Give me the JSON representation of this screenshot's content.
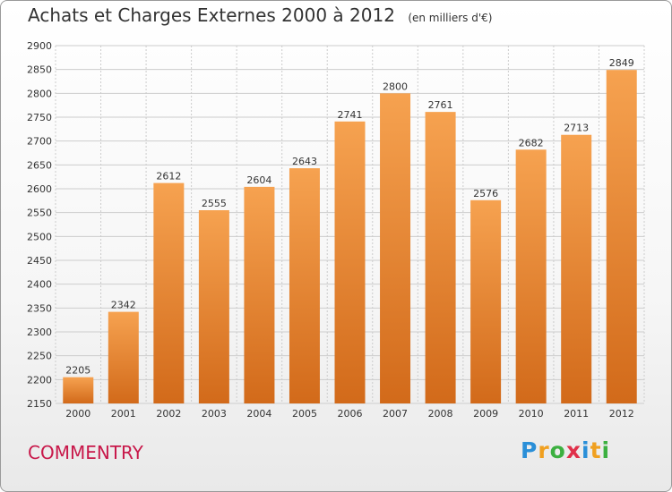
{
  "header": {
    "title": "Achats et Charges Externes 2000 à 2012",
    "subtitle": "(en milliers d'€)"
  },
  "footer": {
    "city": "COMMENTRY",
    "logo_letters": [
      "P",
      "r",
      "o",
      "x",
      "i",
      "t",
      "i"
    ],
    "logo_colors": [
      "#2a8fd8",
      "#f0a020",
      "#3cb040",
      "#e0304a",
      "#2a8fd8",
      "#f0a020",
      "#3cb040"
    ]
  },
  "colors": {
    "bar_top": "#f6a250",
    "bar_bottom": "#d26a1a",
    "grid": "#cccccc",
    "title": "#333333",
    "city": "#c8184a"
  },
  "chart_data": {
    "type": "bar",
    "title": "Achats et Charges Externes 2000 à 2012",
    "subtitle": "(en milliers d'€)",
    "categories": [
      "2000",
      "2001",
      "2002",
      "2003",
      "2004",
      "2005",
      "2006",
      "2007",
      "2008",
      "2009",
      "2010",
      "2011",
      "2012"
    ],
    "values": [
      2205,
      2342,
      2612,
      2555,
      2604,
      2643,
      2741,
      2800,
      2761,
      2576,
      2682,
      2713,
      2849
    ],
    "ylim": [
      2150,
      2900
    ],
    "yticks": [
      2150,
      2200,
      2250,
      2300,
      2350,
      2400,
      2450,
      2500,
      2550,
      2600,
      2650,
      2700,
      2750,
      2800,
      2850,
      2900
    ],
    "grid": true,
    "legend": "none"
  }
}
